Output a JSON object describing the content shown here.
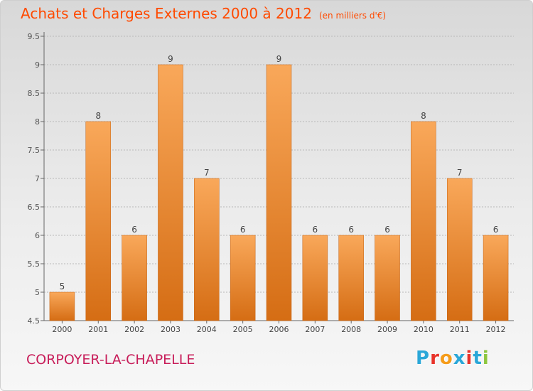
{
  "title": "Achats et Charges Externes 2000 à 2012",
  "unit": "(en milliers d'€)",
  "commune": "CORPOYER-LA-CHAPELLE",
  "logo": {
    "letters": [
      "P",
      "r",
      "o",
      "x",
      "i",
      "t",
      "i"
    ],
    "colors": [
      "#2aa7d8",
      "#e8332a",
      "#f59c1a",
      "#2aa7d8",
      "#e8332a",
      "#2aa7d8",
      "#8dc63f"
    ]
  },
  "colors": {
    "bar_light": "#f9a85a",
    "bar_dark": "#d56d14",
    "bar_edge": "#c4600f",
    "title": "#ff4a00",
    "commune": "#c81e5a"
  },
  "chart_data": {
    "type": "bar",
    "categories": [
      "2000",
      "2001",
      "2002",
      "2003",
      "2004",
      "2005",
      "2006",
      "2007",
      "2008",
      "2009",
      "2010",
      "2011",
      "2012"
    ],
    "values": [
      5,
      8,
      6,
      9,
      7,
      6,
      9,
      6,
      6,
      6,
      8,
      7,
      6
    ],
    "ylim": [
      4.5,
      9.5
    ],
    "yticks": [
      "4.5",
      "5",
      "5.5",
      "6",
      "6.5",
      "7",
      "7.5",
      "8",
      "8.5",
      "9",
      "9.5"
    ],
    "grid": "horizontal-dashed"
  }
}
